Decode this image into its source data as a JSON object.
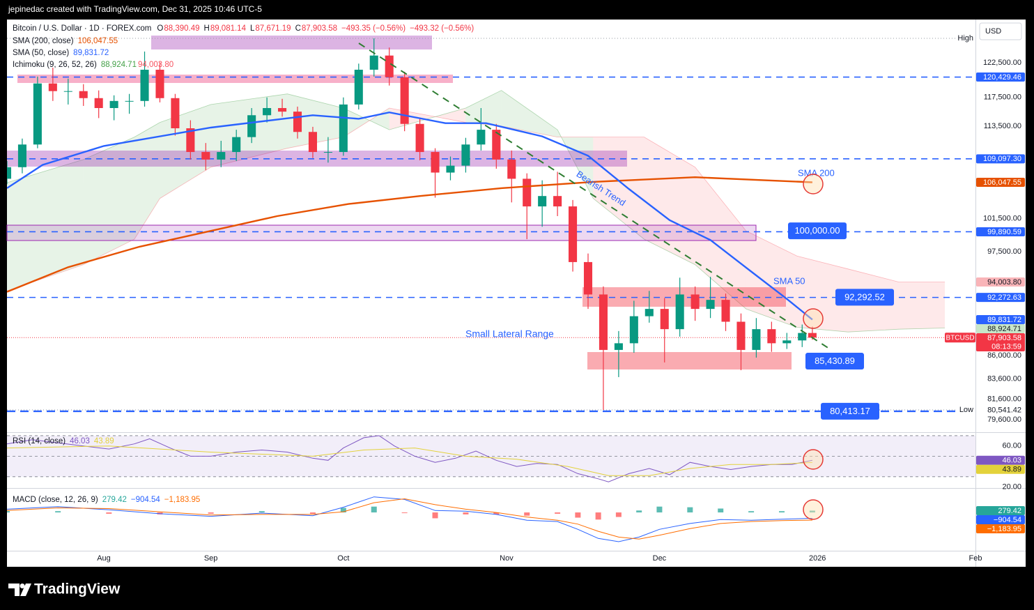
{
  "header": {
    "attribution": "jepinedac created with TradingView.com, Dec 31, 2025 10:46 UTC-5"
  },
  "chart_data": [
    {
      "type": "candlestick",
      "symbol_title": "Bitcoin / U.S. Dollar · 1D · FOREX.com",
      "ohlc_legend": [
        {
          "key": "O",
          "label": "88,390.49"
        },
        {
          "key": "H",
          "label": "89,081.14"
        },
        {
          "key": "L",
          "label": "87,671.19"
        },
        {
          "key": "C",
          "label": "87,903.58"
        }
      ],
      "changes": [
        "−493.35 (−0.56%)",
        "−493.32 (−0.56%)"
      ],
      "currency": "USD",
      "symbol_tag": "BTCUSD",
      "countdown": "08:13:59",
      "close_label": "87,903.58",
      "high_label": "High",
      "low_label": "Low",
      "low_tag": {
        "value": 80541.42,
        "label": "80,541.42"
      },
      "up_color": "#089981",
      "down_color": "#f23645",
      "xlim": [
        0,
        190
      ],
      "xticks": [
        {
          "value": 19,
          "label": "Aug"
        },
        {
          "value": 40,
          "label": "Sep"
        },
        {
          "value": 66,
          "label": "Oct"
        },
        {
          "value": 98,
          "label": "Nov"
        },
        {
          "value": 128,
          "label": "Dec"
        },
        {
          "value": 159,
          "label": "2026"
        },
        {
          "value": 190,
          "label": "Feb"
        }
      ],
      "ylim": [
        78400,
        129100
      ],
      "log_scale": true,
      "yticks": [
        {
          "value": 122500,
          "label": "122,500.00"
        },
        {
          "value": 117500,
          "label": "117,500.00"
        },
        {
          "value": 113500,
          "label": "113,500.00"
        },
        {
          "value": 101500,
          "label": "101,500.00"
        },
        {
          "value": 97500,
          "label": "97,500.00"
        },
        {
          "value": 86000,
          "label": "86,000.00"
        },
        {
          "value": 83600,
          "label": "83,600.00"
        },
        {
          "value": 81600,
          "label": "81,600.00"
        },
        {
          "value": 79600,
          "label": "79,600.00"
        }
      ],
      "x": [
        0,
        3,
        6,
        9,
        12,
        15,
        18,
        21,
        24,
        27,
        30,
        33,
        36,
        39,
        42,
        45,
        48,
        51,
        54,
        57,
        60,
        63,
        66,
        69,
        72,
        75,
        78,
        81,
        84,
        87,
        90,
        93,
        96,
        99,
        102,
        105,
        108,
        111,
        114,
        117,
        120,
        123,
        126,
        129,
        132,
        135,
        138,
        141,
        144,
        147,
        150,
        153,
        156,
        158
      ],
      "open": [
        106500,
        108000,
        111000,
        119500,
        118400,
        118400,
        117400,
        116000,
        117000,
        117000,
        121500,
        117400,
        113200,
        110000,
        109000,
        110000,
        112000,
        115000,
        116000,
        115500,
        112700,
        110000,
        110000,
        116500,
        121500,
        123600,
        120400,
        113800,
        110000,
        107300,
        108200,
        111000,
        113000,
        109000,
        106500,
        103000,
        104300,
        103000,
        96300,
        92600,
        86600,
        87300,
        90200,
        91000,
        88800,
        92600,
        91000,
        92000,
        89600,
        86600,
        88800,
        87300,
        87600,
        88390.49
      ],
      "high": [
        108800,
        111800,
        120500,
        121800,
        120200,
        119400,
        118500,
        117800,
        118000,
        124200,
        122600,
        118000,
        114300,
        111200,
        111500,
        113000,
        116000,
        117500,
        117300,
        116200,
        113400,
        112000,
        117500,
        122400,
        126200,
        124800,
        121200,
        114500,
        110500,
        109400,
        111900,
        116000,
        113800,
        110200,
        107200,
        106300,
        107400,
        103800,
        97300,
        93500,
        88600,
        91900,
        93000,
        92200,
        94500,
        93500,
        94600,
        92700,
        90500,
        90000,
        89600,
        88400,
        89300,
        89081.14
      ],
      "low": [
        105800,
        107200,
        110500,
        117000,
        116500,
        116300,
        114600,
        114300,
        115200,
        116200,
        116800,
        112200,
        109000,
        107600,
        108000,
        108800,
        111200,
        114000,
        114800,
        111800,
        109200,
        108600,
        109500,
        115800,
        120500,
        119200,
        112800,
        108900,
        104100,
        106300,
        107300,
        110200,
        107800,
        103500,
        99000,
        100500,
        101800,
        95200,
        91000,
        80541.42,
        83800,
        86300,
        89500,
        85300,
        88000,
        89700,
        90000,
        88600,
        84500,
        85800,
        86400,
        86700,
        86900,
        87671.19
      ],
      "close": [
        108000,
        111000,
        119500,
        118400,
        118400,
        117400,
        116000,
        117000,
        117000,
        121500,
        117400,
        113200,
        110000,
        109000,
        110000,
        112000,
        115000,
        116000,
        115500,
        112700,
        110000,
        110000,
        116500,
        121500,
        123600,
        120400,
        113800,
        110000,
        107300,
        108200,
        111000,
        113000,
        109000,
        106500,
        103000,
        104300,
        103000,
        96300,
        92600,
        86600,
        87300,
        90200,
        91000,
        88800,
        92600,
        91000,
        92000,
        89600,
        86600,
        88800,
        87300,
        87600,
        88390.49,
        87903.58
      ],
      "series": [
        {
          "name": "SMA (200, close)",
          "color": "#e65100",
          "x": [
            0,
            12,
            26,
            40,
            53,
            67,
            81,
            97,
            115,
            135,
            158
          ],
          "values": [
            92900,
            95700,
            98100,
            100000,
            101800,
            103300,
            104300,
            105300,
            106100,
            106700,
            106047.55
          ],
          "value_labels": [
            null,
            null,
            null,
            null,
            null,
            null,
            null,
            null,
            null,
            null,
            "106,047.55"
          ]
        },
        {
          "name": "SMA (50, close)",
          "color": "#2962ff",
          "x": [
            0,
            7,
            19,
            40,
            60,
            69,
            75,
            86,
            94,
            105,
            114,
            122,
            130,
            138,
            146,
            153,
            158
          ],
          "values": [
            105300,
            108300,
            110800,
            113300,
            115000,
            114500,
            115400,
            113900,
            113900,
            112100,
            109500,
            105200,
            101300,
            98900,
            95200,
            92100,
            89831.72
          ],
          "value_labels": [
            null,
            null,
            null,
            null,
            null,
            null,
            null,
            null,
            null,
            null,
            null,
            null,
            null,
            null,
            null,
            null,
            "89,831.72"
          ]
        }
      ],
      "ichimoku": {
        "name": "Ichimoku (9, 26, 52, 26)",
        "up_color": "#43a047",
        "down_color": "#f7525f",
        "x": [
          0,
          15,
          25,
          30,
          40,
          55,
          66,
          75,
          90,
          97,
          108,
          115,
          125,
          135,
          145,
          155,
          165,
          175,
          184
        ],
        "span_a": {
          "values": [
            106000,
            109000,
            112000,
            114000,
            116500,
            118000,
            116000,
            113000,
            116000,
            118500,
            113000,
            104000,
            99000,
            96000,
            91000,
            89000,
            88500,
            88800,
            88924.71
          ],
          "value_labels": [
            null,
            null,
            null,
            null,
            null,
            null,
            null,
            null,
            null,
            null,
            null,
            null,
            null,
            null,
            null,
            null,
            null,
            null,
            "88,924.71"
          ]
        },
        "span_b": {
          "values": [
            93000,
            96000,
            99000,
            104000,
            108000,
            110500,
            112000,
            116000,
            114000,
            113500,
            112000,
            112000,
            112000,
            108000,
            100000,
            97000,
            95500,
            94000,
            94003.8
          ],
          "value_labels": [
            null,
            null,
            null,
            null,
            null,
            null,
            null,
            null,
            null,
            null,
            null,
            null,
            null,
            null,
            null,
            null,
            null,
            null,
            "94,003.80"
          ]
        }
      },
      "levels": [
        {
          "value": 120429.46,
          "label": "120,429.46"
        },
        {
          "value": 109097.3,
          "label": "109,097.30"
        },
        {
          "value": 99890.59,
          "label": "99,890.59"
        },
        {
          "value": 92272.63,
          "label": "92,272.63"
        }
      ],
      "callouts": [
        {
          "value": 100000,
          "label": "100,000.00"
        },
        {
          "value": 92292.52,
          "label": "92,292.52"
        },
        {
          "value": 85430.89,
          "label": "85,430.89"
        },
        {
          "value": 80413.17,
          "label": "80,413.17",
          "dashed_line": true
        }
      ],
      "annotations": [
        "Small Lateral Range",
        "Bearish Trend",
        "SMA 200",
        "SMA 50"
      ]
    },
    {
      "type": "line",
      "title": "RSI (14, close)",
      "ylim": [
        19,
        72
      ],
      "yticks": [
        {
          "value": 60,
          "label": "60.00"
        },
        {
          "value": 20,
          "label": "20.00"
        }
      ],
      "levels": [
        70,
        50,
        30
      ],
      "series": [
        {
          "color": "#7e57c2",
          "x": [
            0,
            5,
            10,
            15,
            20,
            25,
            28,
            32,
            36,
            40,
            45,
            50,
            55,
            60,
            63,
            66,
            70,
            73,
            76,
            80,
            84,
            88,
            92,
            96,
            100,
            104,
            108,
            112,
            116,
            118,
            122,
            126,
            130,
            134,
            138,
            142,
            146,
            150,
            154,
            158
          ],
          "values": [
            62,
            66,
            63,
            60,
            57,
            62,
            67,
            58,
            50,
            50,
            54,
            56,
            54,
            48,
            46,
            58,
            68,
            70,
            60,
            50,
            44,
            48,
            55,
            46,
            40,
            43,
            42,
            33,
            28,
            25,
            33,
            38,
            32,
            44,
            40,
            37,
            40,
            42,
            42,
            46.03
          ]
        },
        {
          "color": "#e3d23b",
          "x": [
            0,
            20,
            40,
            60,
            70,
            80,
            90,
            100,
            110,
            118,
            126,
            134,
            142,
            150,
            158
          ],
          "values": [
            58,
            60,
            54,
            50,
            56,
            58,
            50,
            47,
            40,
            31,
            31,
            38,
            42,
            42,
            43.89
          ]
        }
      ]
    },
    {
      "type": "macd",
      "title": "MACD (close, 12, 26, 9)",
      "ylim": [
        -5900,
        3550
      ],
      "x": [
        0,
        10,
        20,
        30,
        40,
        50,
        60,
        66,
        72,
        78,
        84,
        90,
        96,
        102,
        108,
        112,
        116,
        120,
        124,
        128,
        134,
        140,
        146,
        152,
        158
      ],
      "histogram": {
        "up_color": "#26a69a",
        "down_color": "#ff5252",
        "values": [
          200,
          200,
          -200,
          -300,
          -200,
          200,
          -200,
          700,
          900,
          -100,
          -900,
          -300,
          -300,
          -500,
          -200,
          -800,
          -1100,
          -700,
          300,
          900,
          800,
          600,
          200,
          200,
          279.42
        ]
      },
      "series": [
        {
          "color": "#2962ff",
          "values": [
            500,
            900,
            400,
            -200,
            -600,
            -100,
            -500,
            800,
            2400,
            2000,
            300,
            200,
            -300,
            -1200,
            -1400,
            -2600,
            -4000,
            -4500,
            -3800,
            -2600,
            -1700,
            -1100,
            -1200,
            -1050,
            -904.54
          ],
          "value_labels": [
            null,
            null,
            null,
            null,
            null,
            null,
            null,
            null,
            null,
            null,
            null,
            null,
            null,
            null,
            null,
            null,
            null,
            null,
            null,
            null,
            null,
            null,
            null,
            null,
            "−904.54"
          ]
        },
        {
          "color": "#ff6d00",
          "values": [
            300,
            700,
            600,
            100,
            -400,
            -300,
            -300,
            100,
            1500,
            2100,
            1200,
            500,
            0,
            -700,
            -1200,
            -1800,
            -2900,
            -3800,
            -4100,
            -3500,
            -2500,
            -1700,
            -1400,
            -1250,
            -1183.95
          ],
          "value_labels": [
            null,
            null,
            null,
            null,
            null,
            null,
            null,
            null,
            null,
            null,
            null,
            null,
            null,
            null,
            null,
            null,
            null,
            null,
            null,
            null,
            null,
            null,
            null,
            null,
            "−1,183.95"
          ]
        }
      ]
    }
  ],
  "footer": {
    "brand": "TradingView"
  }
}
